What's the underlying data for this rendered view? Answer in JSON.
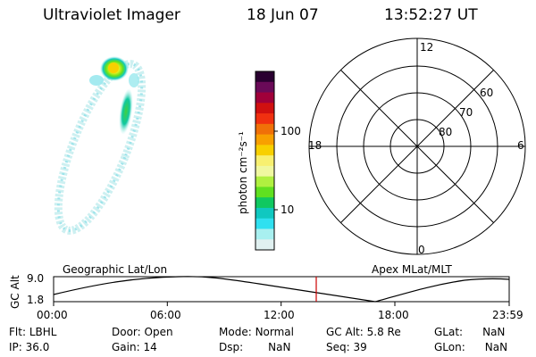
{
  "header": {
    "instrument": "Ultraviolet Imager",
    "date": "18 Jun 07",
    "time": "13:52:27 UT"
  },
  "colorbar": {
    "unit_label": "photon cm⁻²s⁻¹",
    "ticks": [
      "100",
      "10"
    ],
    "colors": [
      "#2a0030",
      "#6a0a58",
      "#a0003a",
      "#d01010",
      "#f03010",
      "#f07008",
      "#f8a000",
      "#f8d000",
      "#f8f070",
      "#f0f8a0",
      "#b0f040",
      "#60e020",
      "#10c860",
      "#10c8c0",
      "#30e0f0",
      "#a8f0f0",
      "#e0f0f0"
    ]
  },
  "polar_plot": {
    "mlt_labels": {
      "top": "12",
      "left": "18",
      "right": "6",
      "bottom": "0"
    },
    "lat_labels": [
      "60",
      "70",
      "80"
    ]
  },
  "timeline": {
    "ylabel": "GC Alt",
    "y_ticks": [
      "9.0",
      "1.8"
    ],
    "left_title": "Geographic Lat/Lon",
    "right_title": "Apex MLat/MLT",
    "x_ticks": [
      "00:00",
      "06:00",
      "12:00",
      "18:00",
      "23:59"
    ],
    "cursor_time": "13:52:27",
    "cursor_color": "#cc0000"
  },
  "info": {
    "rows": [
      [
        {
          "label": "Flt:",
          "value": "LBHL"
        },
        {
          "label": "Door:",
          "value": "Open"
        },
        {
          "label": "Mode:",
          "value": "Normal"
        },
        {
          "label": "GC Alt:",
          "value": "5.8 Re"
        },
        {
          "label": "GLat:",
          "value": "NaN"
        }
      ],
      [
        {
          "label": "IP:",
          "value": "36.0"
        },
        {
          "label": "Gain:",
          "value": "14"
        },
        {
          "label": "Dsp:",
          "value": "NaN"
        },
        {
          "label": "Seq:",
          "value": "39"
        },
        {
          "label": "GLon:",
          "value": "NaN"
        }
      ]
    ]
  }
}
